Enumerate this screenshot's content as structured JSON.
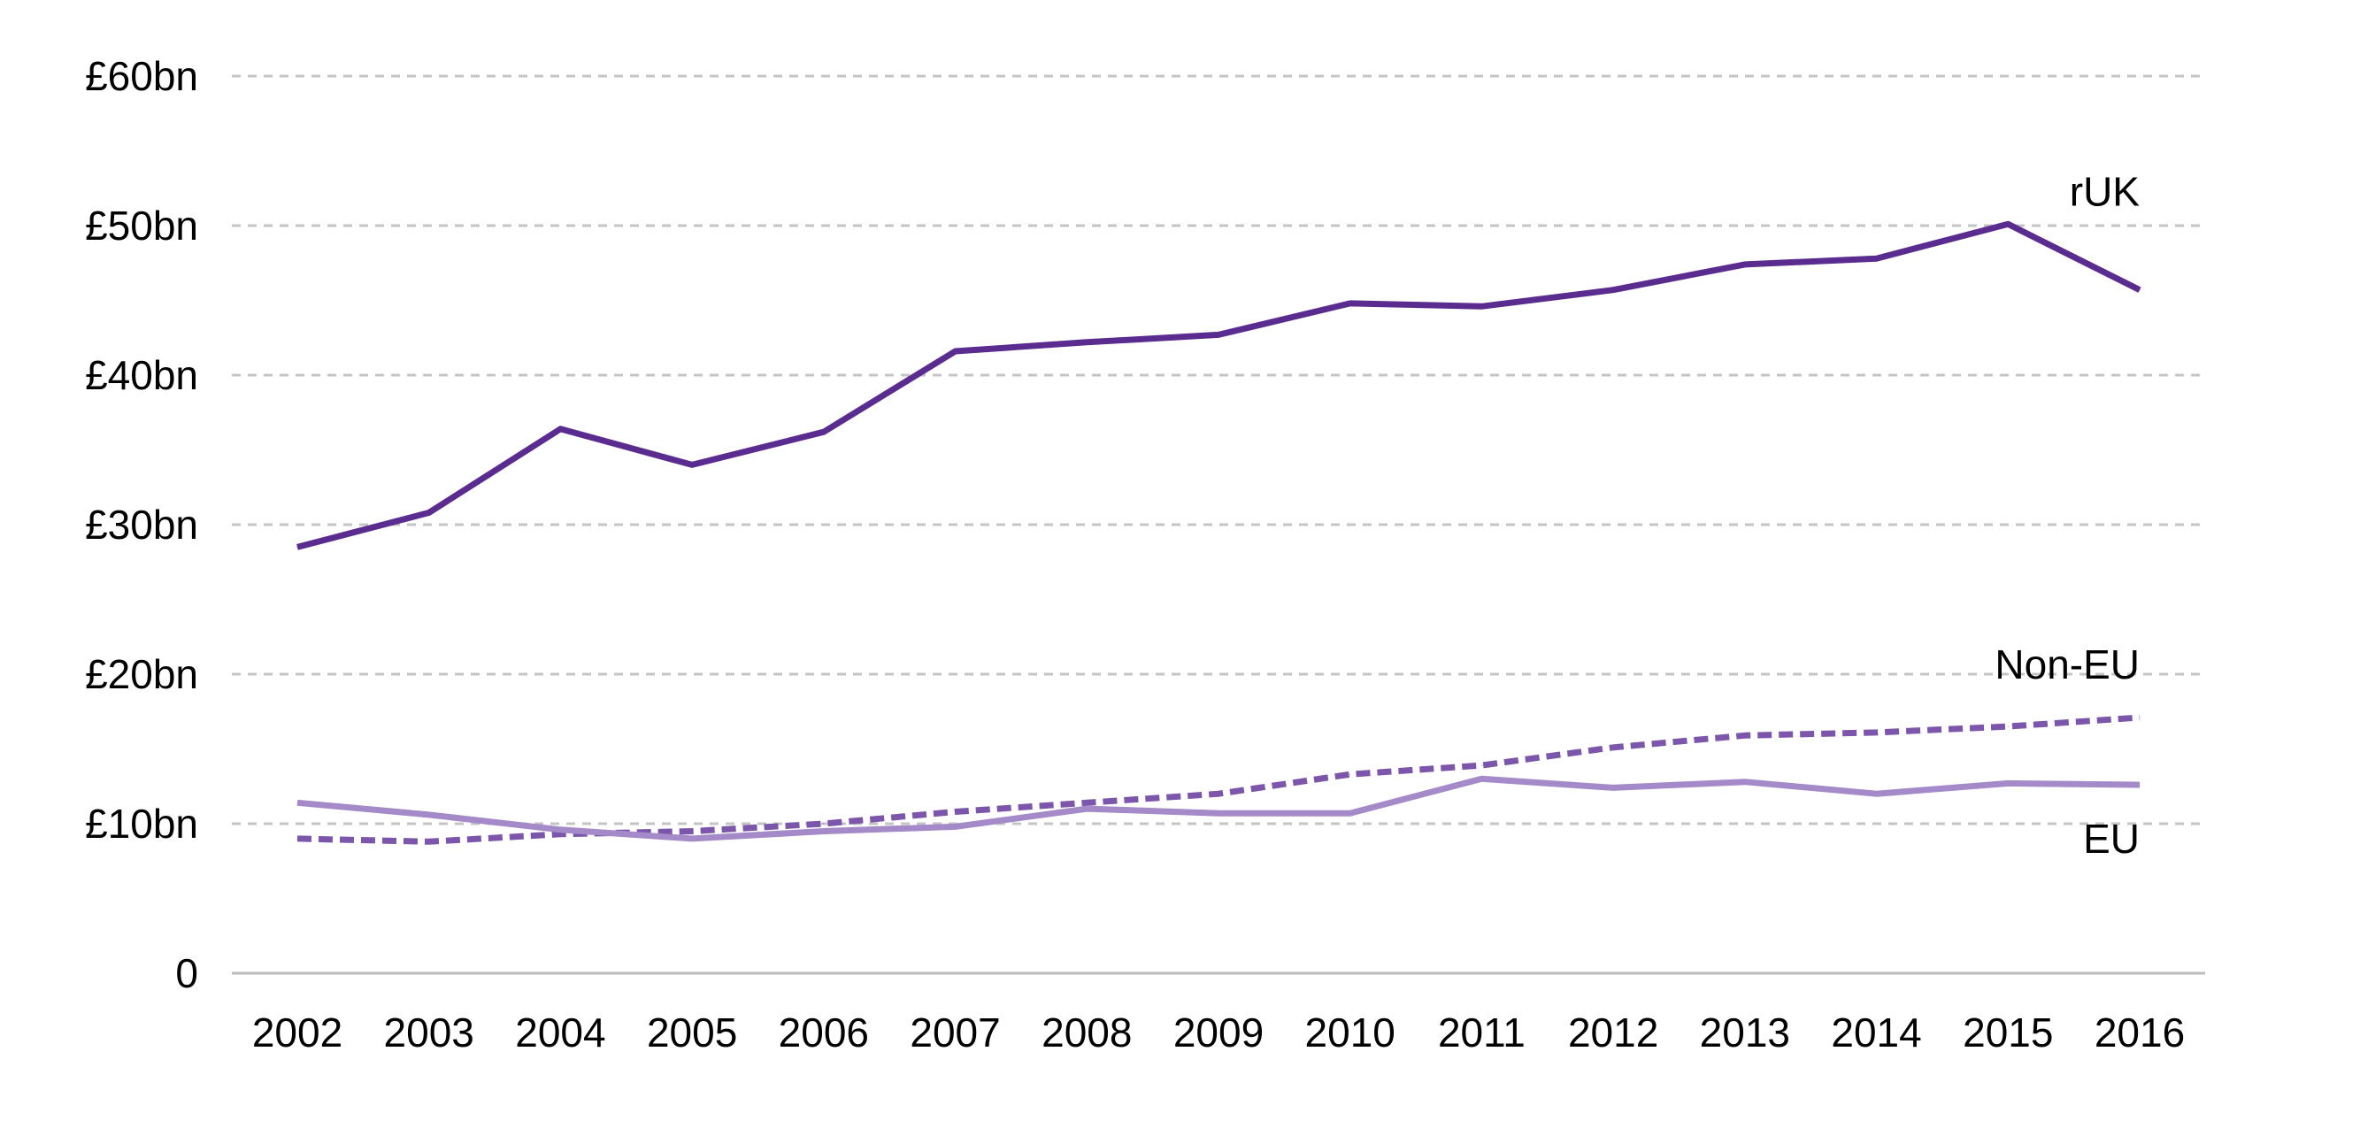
{
  "chart_data": {
    "type": "line",
    "title": "",
    "xlabel": "",
    "ylabel": "",
    "x": [
      "2002",
      "2003",
      "2004",
      "2005",
      "2006",
      "2007",
      "2008",
      "2009",
      "2010",
      "2011",
      "2012",
      "2013",
      "2014",
      "2015",
      "2016"
    ],
    "ylim": [
      0,
      60
    ],
    "yticks": [
      0,
      10,
      20,
      30,
      40,
      50,
      60
    ],
    "ytick_labels": [
      "0",
      "£10bn",
      "£20bn",
      "£30bn",
      "£40bn",
      "£50bn",
      "£60bn"
    ],
    "grid": true,
    "legend": "none",
    "series": [
      {
        "name": "rUK",
        "style": "solid",
        "color": "#5b2c8f",
        "values": [
          28.5,
          30.8,
          36.4,
          34.0,
          36.2,
          41.6,
          42.2,
          42.7,
          44.8,
          44.6,
          45.7,
          47.4,
          47.8,
          50.1,
          45.7
        ]
      },
      {
        "name": "Non-EU",
        "style": "dashed",
        "color": "#7b56aa",
        "values": [
          9.0,
          8.8,
          9.3,
          9.5,
          10.0,
          10.8,
          11.4,
          12.0,
          13.3,
          13.9,
          15.1,
          15.9,
          16.1,
          16.5,
          17.1
        ]
      },
      {
        "name": "EU",
        "style": "solid",
        "color": "#a48ac8",
        "values": [
          11.4,
          10.6,
          9.6,
          9.0,
          9.5,
          9.8,
          11.0,
          10.7,
          10.7,
          13.0,
          12.4,
          12.8,
          12.0,
          12.7,
          12.6
        ]
      }
    ]
  }
}
